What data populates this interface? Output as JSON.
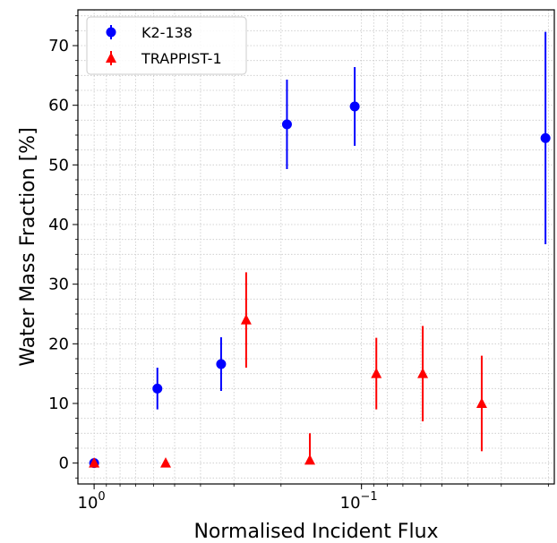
{
  "chart_data": {
    "type": "scatter",
    "xlabel": "Normalised Incident Flux",
    "ylabel": "Water Mass Fraction [%]",
    "x_scale": "log-reversed",
    "xlim": [
      1.15,
      0.019
    ],
    "ylim": [
      -3.5,
      76
    ],
    "grid": "minor-dotted",
    "legend_position": "top-left",
    "x_ticks": [
      {
        "value": 1,
        "base": "10",
        "exp": "0"
      },
      {
        "value": 0.1,
        "base": "10",
        "exp": "−1"
      }
    ],
    "y_ticks": [
      "0",
      "10",
      "20",
      "30",
      "40",
      "50",
      "60",
      "70"
    ],
    "series": [
      {
        "name": "K2-138",
        "color": "#0000ff",
        "marker": "circle",
        "points": [
          {
            "x": 1.0,
            "y": 0.0,
            "err_low": 0.0,
            "err_high": 0.0
          },
          {
            "x": 0.58,
            "y": 12.5,
            "err_low": 3.5,
            "err_high": 3.5
          },
          {
            "x": 0.335,
            "y": 16.6,
            "err_low": 4.5,
            "err_high": 4.5
          },
          {
            "x": 0.19,
            "y": 56.8,
            "err_low": 7.5,
            "err_high": 7.5
          },
          {
            "x": 0.106,
            "y": 59.8,
            "err_low": 6.6,
            "err_high": 6.6
          },
          {
            "x": 0.0205,
            "y": 54.5,
            "err_low": 17.8,
            "err_high": 17.8
          }
        ]
      },
      {
        "name": "TRAPPIST-1",
        "color": "#ff0000",
        "marker": "triangle",
        "points": [
          {
            "x": 1.0,
            "y": 0.0,
            "err_low": 0.0,
            "err_high": 0.0
          },
          {
            "x": 0.54,
            "y": 0.0,
            "err_low": 0.0,
            "err_high": 0.0
          },
          {
            "x": 0.27,
            "y": 24.0,
            "err_low": 8.0,
            "err_high": 8.0
          },
          {
            "x": 0.156,
            "y": 0.5,
            "err_low": 0.5,
            "err_high": 4.5
          },
          {
            "x": 0.088,
            "y": 15.0,
            "err_low": 6.0,
            "err_high": 6.0
          },
          {
            "x": 0.059,
            "y": 15.0,
            "err_low": 8.0,
            "err_high": 8.0
          },
          {
            "x": 0.0355,
            "y": 10.0,
            "err_low": 8.0,
            "err_high": 8.0
          }
        ]
      }
    ]
  }
}
